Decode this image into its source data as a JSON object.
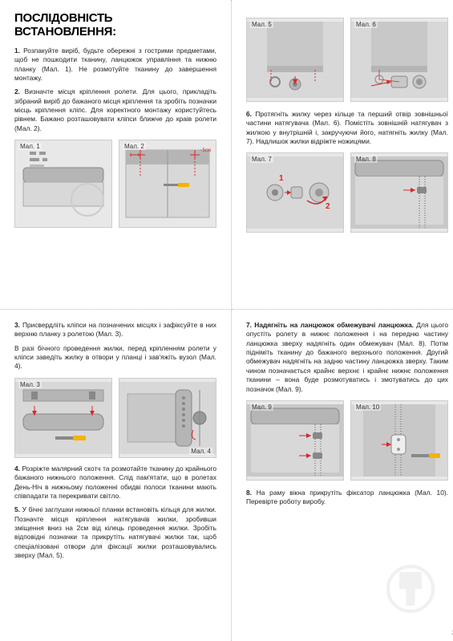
{
  "title": "ПОСЛІДОВНІСТЬ ВСТАНОВЛЕННЯ:",
  "steps": {
    "s1": "<b>1.</b> Розпакуйте виріб, будьте обережні з гострими предметами, щоб не пошкодити тканину, ланцюжок управління та нижню планку (Мал. 1). Не розмотуйте тканину до завершення монтажу.",
    "s2": "<b>2.</b> Визначте місця кріплення ролети. Для цього, прикладіть зібраний виріб до бажаного місця кріплення та зробіть позначки місць кріплення кліпс. Для коректного монтажу користуйтесь рівнем. Бажано розташовувати кліпси ближче до краів ролети (Мал. 2).",
    "s3": "<b>3.</b> Присвердліть кліпси на позначених місцях і зафіксуйте в них верхню планку з ролетою (Мал. 3).",
    "s3b": "В разі бічного проведення жилки, перед кріпленням ролети у кліпси заведіть жилку в отвори у планці і зав'яжіть вузол (Мал. 4).",
    "s4": "<b>4.</b> Розріжте малярний скотч та розмотайте тканину до крайнього бажаного нижнього положення. Слід пам'ятати, що в ролетах День-Ніч в нижньому положенні обидві полоси тканини мають співпадати та перекривати світло.",
    "s5": "<b>5.</b> У бічні заглушки нижньої планки встановіть кільця для жилки. Позначте місця кріплення натягувачів жилки, зробивши зміщення вниз на 2см від кілець проведення жилки. Зробіть відповідні позначки та прикрутіть натягувачі жилки так, щоб спеціалізовані отвори для фіксації жилки розташовувались зверху (Мал. 5).",
    "s6": "<b>6.</b> Протягніть жилку через кільце та перший отвір зовнішньої частини натягувача (Мал. 6). Помістіть зовнішній натягувач з жилкою у внутрішній і, закручуючи його, натягніть жилку (Мал. 7). Надлишок жилки відріжте ножицями.",
    "s7": "<b>7. Надягніть на ланцюжок обмежувачі ланцюжка.</b> Для цього опустіть ролету в нижнє положення і на передню частину ланцюжка зверху надягніть один обмежувач (Мал. 8). Потім підніміть тканину до бажаного верхнього положення. Другий обмежувач надягніть на задню частину ланцюжка зверху. Таким чином позначається крайнє верхнє і крайнє нижнє положення тканини – вона буде розмотуватись і змотуватись до цих позначок (Мал. 9).",
    "s8": "<b>8.</b> На раму вікна прикрутіть фіксатор ланцюжка (Мал. 10). Перевірте роботу виробу."
  },
  "figs": {
    "f1": "Мал. 1",
    "f2": "Мал. 2",
    "f3": "Мал. 3",
    "f4": "Мал. 4",
    "f5": "Мал. 5",
    "f6": "Мал. 6",
    "f7": "Мал. 7",
    "f8": "Мал. 8",
    "f9": "Мал. 9",
    "f10": "Мал. 10"
  },
  "dim_label": "~5см",
  "page_number": "2",
  "colors": {
    "bg": "#ffffff",
    "fig_bg": "#e8e8e8",
    "accent_red": "#d62828",
    "accent_yellow": "#f4b400",
    "gray_dark": "#888888",
    "gray_mid": "#b5b5b5",
    "gray_light": "#d8d8d8",
    "text": "#222222"
  }
}
